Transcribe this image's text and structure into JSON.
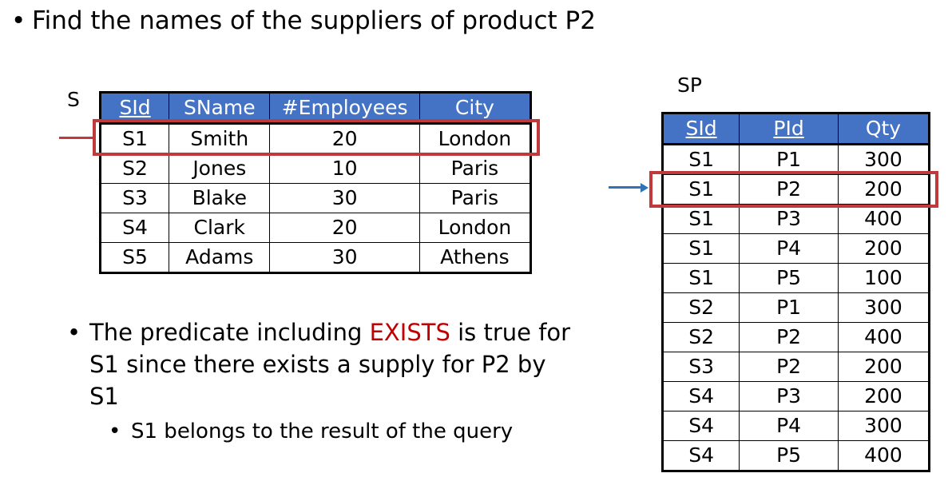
{
  "title": {
    "bullet": "•",
    "text": "Find the names of the suppliers of product P2"
  },
  "table_s": {
    "label": "S",
    "headers": [
      "SId",
      "SName",
      "#Employees",
      "City"
    ],
    "rows": [
      [
        "S1",
        "Smith",
        "20",
        "London"
      ],
      [
        "S2",
        "Jones",
        "10",
        "Paris"
      ],
      [
        "S3",
        "Blake",
        "30",
        "Paris"
      ],
      [
        "S4",
        "Clark",
        "20",
        "London"
      ],
      [
        "S5",
        "Adams",
        "30",
        "Athens"
      ]
    ]
  },
  "table_sp": {
    "label": "SP",
    "headers": [
      "SId",
      "PId",
      "Qty"
    ],
    "rows": [
      [
        "S1",
        "P1",
        "300"
      ],
      [
        "S1",
        "P2",
        "200"
      ],
      [
        "S1",
        "P3",
        "400"
      ],
      [
        "S1",
        "P4",
        "200"
      ],
      [
        "S1",
        "P5",
        "100"
      ],
      [
        "S2",
        "P1",
        "300"
      ],
      [
        "S2",
        "P2",
        "400"
      ],
      [
        "S3",
        "P2",
        "200"
      ],
      [
        "S4",
        "P3",
        "200"
      ],
      [
        "S4",
        "P4",
        "300"
      ],
      [
        "S4",
        "P5",
        "400"
      ]
    ]
  },
  "bullets": {
    "b1_bullet": "•",
    "b1_before": "The predicate including ",
    "b1_keyword": "EXISTS",
    "b1_after": " is true for S1 since there exists a supply for P2 by S1",
    "b2_bullet": "•",
    "b2_text": "S1 belongs to the result of the query"
  },
  "colors": {
    "header_bg": "#4472c4",
    "highlight_box": "#c0393b",
    "keyword": "#c00000",
    "pointer_s": "#c0393b",
    "pointer_sp": "#2e75b6"
  }
}
